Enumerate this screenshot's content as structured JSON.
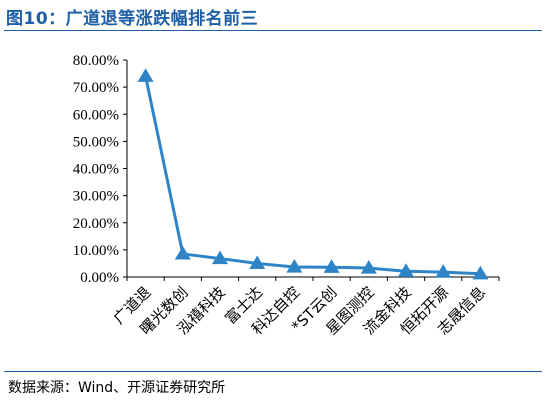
{
  "header": {
    "title": "图10：广道退等涨跌幅排名前三"
  },
  "footer": {
    "source": "数据来源：Wind、开源证券研究所"
  },
  "chart_data": {
    "type": "line",
    "title": "",
    "xlabel": "",
    "ylabel": "",
    "categories": [
      "广道退",
      "曙光数创",
      "泓禧科技",
      "富士达",
      "科达自控",
      "*ST云创",
      "星图测控",
      "流金科技",
      "恒拓开源",
      "志晟信息"
    ],
    "series": [
      {
        "values": [
          74.0,
          8.5,
          6.8,
          5.0,
          3.7,
          3.6,
          3.3,
          2.1,
          1.8,
          1.2
        ]
      }
    ],
    "ylim": [
      0,
      80
    ],
    "yticks": [
      "0.00%",
      "10.00%",
      "20.00%",
      "30.00%",
      "40.00%",
      "50.00%",
      "60.00%",
      "70.00%",
      "80.00%"
    ],
    "color": "#2e84c6",
    "marker": "triangle",
    "grid": false,
    "legend": "none"
  }
}
